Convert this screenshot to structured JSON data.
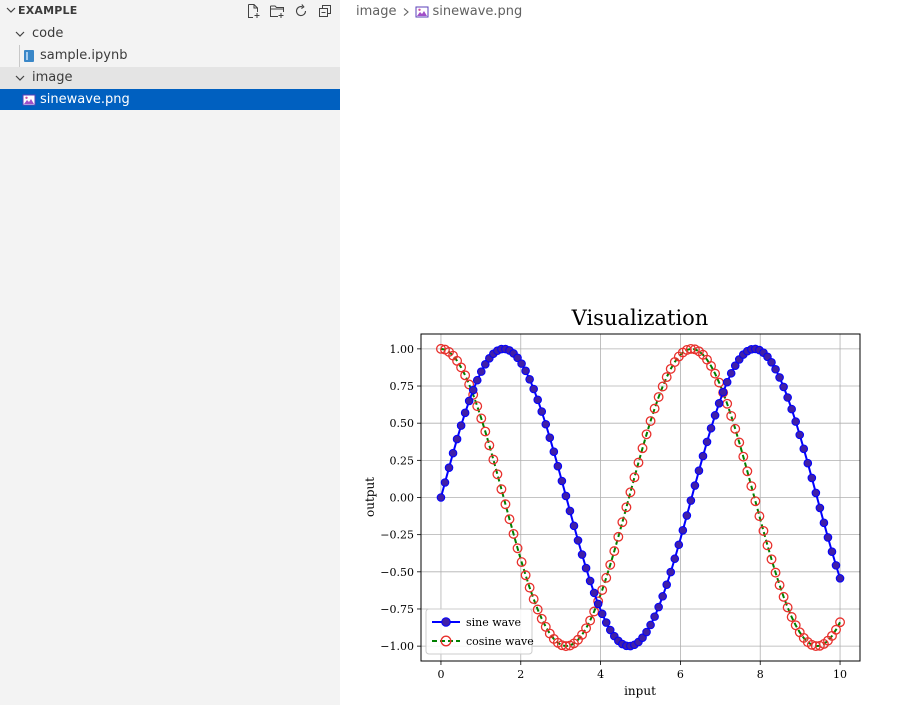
{
  "explorer": {
    "title": "EXAMPLE",
    "actions": [
      {
        "name": "new-file-icon"
      },
      {
        "name": "new-folder-icon"
      },
      {
        "name": "refresh-icon"
      },
      {
        "name": "collapse-all-icon"
      }
    ],
    "tree": {
      "code_folder": "code",
      "sample_file": "sample.ipynb",
      "image_folder": "image",
      "sine_file": "sinewave.png"
    }
  },
  "breadcrumb": {
    "folder": "image",
    "file": "sinewave.png"
  },
  "colors": {
    "sidebar_bg": "#f3f3f3",
    "selection": "#0060c0",
    "hover_row": "#e4e4e4",
    "sine_line": "#0000ff",
    "sine_marker_face": "#3f1fa8",
    "cosine_line": "#008000",
    "cosine_marker_edge": "#e8302c"
  },
  "chart_data": {
    "type": "line",
    "title": "Visualization",
    "xlabel": "input",
    "ylabel": "output",
    "xlim": [
      -0.5,
      10.5
    ],
    "ylim": [
      -1.1,
      1.1
    ],
    "xticks": [
      "0",
      "2",
      "4",
      "6",
      "8",
      "10"
    ],
    "yticks": [
      "−1.00",
      "−0.75",
      "−0.50",
      "−0.25",
      "0.00",
      "0.25",
      "0.50",
      "0.75",
      "1.00"
    ],
    "grid": true,
    "legend_position": "lower-left",
    "x_start": 0,
    "x_end": 10,
    "point_count": 100,
    "series": [
      {
        "name": "sine wave",
        "function": "sin(x)",
        "line_style": "solid",
        "marker": "filled-circle"
      },
      {
        "name": "cosine wave",
        "function": "cos(x)",
        "line_style": "dashed",
        "marker": "hollow-circle"
      }
    ]
  }
}
